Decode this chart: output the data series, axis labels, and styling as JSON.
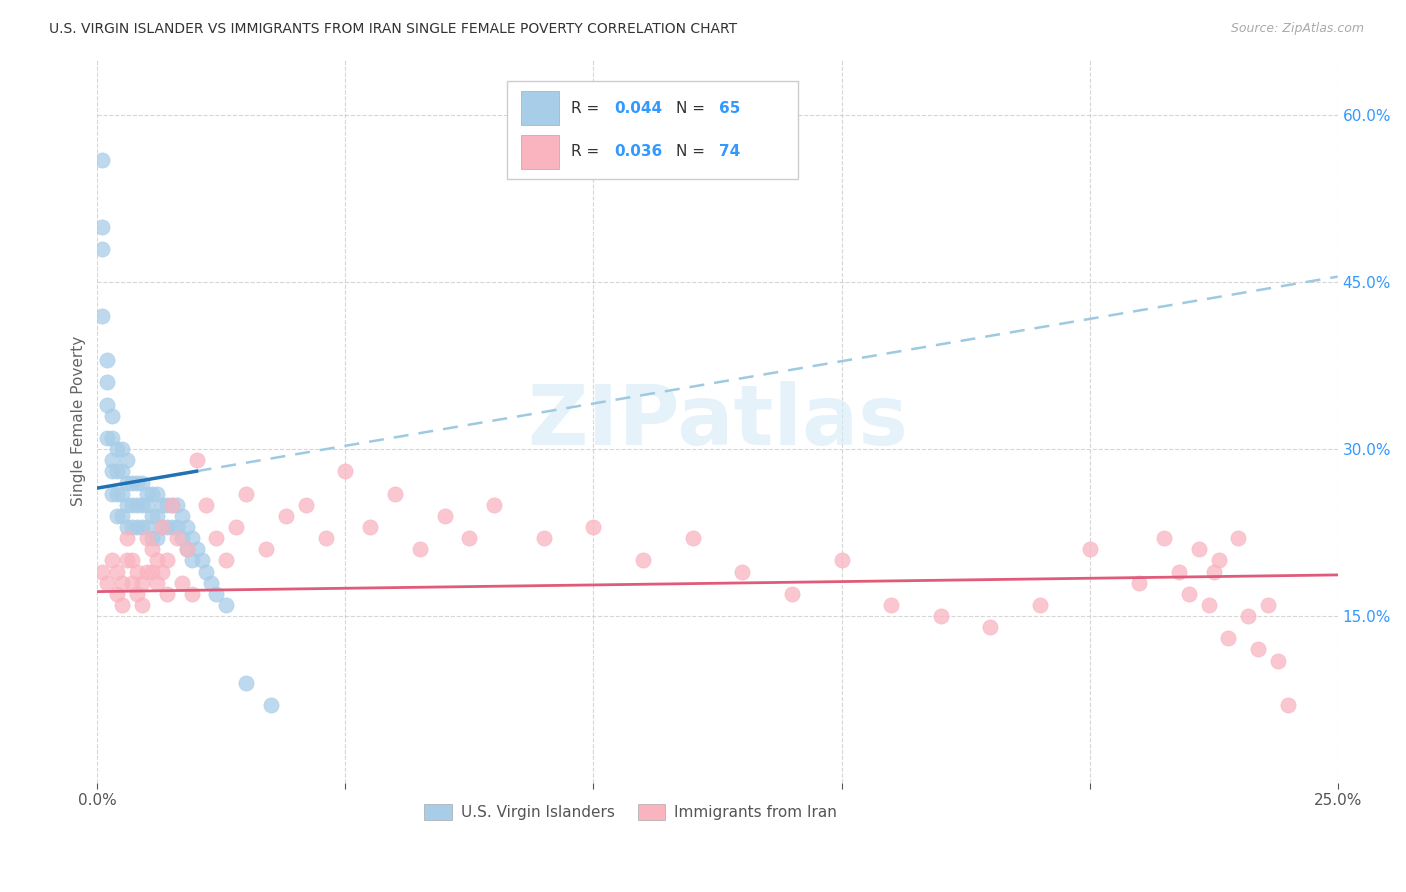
{
  "title": "U.S. VIRGIN ISLANDER VS IMMIGRANTS FROM IRAN SINGLE FEMALE POVERTY CORRELATION CHART",
  "source": "Source: ZipAtlas.com",
  "ylabel": "Single Female Poverty",
  "x_min": 0.0,
  "x_max": 0.25,
  "y_min": 0.0,
  "y_max": 0.65,
  "x_tick_positions": [
    0.0,
    0.05,
    0.1,
    0.15,
    0.2,
    0.25
  ],
  "x_tick_labels": [
    "0.0%",
    "",
    "",
    "",
    "",
    "25.0%"
  ],
  "y_tick_positions": [
    0.15,
    0.3,
    0.45,
    0.6
  ],
  "y_tick_labels": [
    "15.0%",
    "30.0%",
    "45.0%",
    "60.0%"
  ],
  "legend_bottom1": "U.S. Virgin Islanders",
  "legend_bottom2": "Immigrants from Iran",
  "blue_color": "#a8cde8",
  "pink_color": "#f9b4c0",
  "blue_line_solid_color": "#2171b5",
  "blue_line_dash_color": "#9ecae1",
  "pink_line_color": "#e05b7a",
  "R_blue": "0.044",
  "N_blue": "65",
  "R_pink": "0.036",
  "N_pink": "74",
  "blue_line_intercept": 0.265,
  "blue_line_slope": 0.76,
  "blue_line_solid_end": 0.02,
  "pink_line_intercept": 0.172,
  "pink_line_slope": 0.06,
  "blue_scatter_x": [
    0.001,
    0.001,
    0.001,
    0.001,
    0.002,
    0.002,
    0.002,
    0.002,
    0.003,
    0.003,
    0.003,
    0.003,
    0.003,
    0.004,
    0.004,
    0.004,
    0.004,
    0.005,
    0.005,
    0.005,
    0.005,
    0.006,
    0.006,
    0.006,
    0.006,
    0.007,
    0.007,
    0.007,
    0.008,
    0.008,
    0.008,
    0.009,
    0.009,
    0.009,
    0.01,
    0.01,
    0.01,
    0.011,
    0.011,
    0.011,
    0.012,
    0.012,
    0.012,
    0.013,
    0.013,
    0.014,
    0.014,
    0.015,
    0.015,
    0.016,
    0.016,
    0.017,
    0.017,
    0.018,
    0.018,
    0.019,
    0.019,
    0.02,
    0.021,
    0.022,
    0.023,
    0.024,
    0.026,
    0.03,
    0.035
  ],
  "blue_scatter_y": [
    0.56,
    0.5,
    0.48,
    0.42,
    0.38,
    0.36,
    0.34,
    0.31,
    0.33,
    0.31,
    0.29,
    0.28,
    0.26,
    0.3,
    0.28,
    0.26,
    0.24,
    0.3,
    0.28,
    0.26,
    0.24,
    0.29,
    0.27,
    0.25,
    0.23,
    0.27,
    0.25,
    0.23,
    0.27,
    0.25,
    0.23,
    0.27,
    0.25,
    0.23,
    0.26,
    0.25,
    0.23,
    0.26,
    0.24,
    0.22,
    0.26,
    0.24,
    0.22,
    0.25,
    0.23,
    0.25,
    0.23,
    0.25,
    0.23,
    0.25,
    0.23,
    0.24,
    0.22,
    0.23,
    0.21,
    0.22,
    0.2,
    0.21,
    0.2,
    0.19,
    0.18,
    0.17,
    0.16,
    0.09,
    0.07
  ],
  "pink_scatter_x": [
    0.001,
    0.002,
    0.003,
    0.004,
    0.004,
    0.005,
    0.005,
    0.006,
    0.006,
    0.007,
    0.007,
    0.008,
    0.008,
    0.009,
    0.009,
    0.01,
    0.01,
    0.011,
    0.011,
    0.012,
    0.012,
    0.013,
    0.013,
    0.014,
    0.014,
    0.015,
    0.016,
    0.017,
    0.018,
    0.019,
    0.02,
    0.022,
    0.024,
    0.026,
    0.028,
    0.03,
    0.034,
    0.038,
    0.042,
    0.046,
    0.05,
    0.055,
    0.06,
    0.065,
    0.07,
    0.075,
    0.08,
    0.09,
    0.1,
    0.11,
    0.12,
    0.13,
    0.14,
    0.15,
    0.16,
    0.17,
    0.18,
    0.19,
    0.2,
    0.21,
    0.215,
    0.218,
    0.22,
    0.222,
    0.224,
    0.225,
    0.226,
    0.228,
    0.23,
    0.232,
    0.234,
    0.236,
    0.238,
    0.24
  ],
  "pink_scatter_y": [
    0.19,
    0.18,
    0.2,
    0.17,
    0.19,
    0.16,
    0.18,
    0.2,
    0.22,
    0.18,
    0.2,
    0.17,
    0.19,
    0.16,
    0.18,
    0.19,
    0.22,
    0.19,
    0.21,
    0.18,
    0.2,
    0.19,
    0.23,
    0.17,
    0.2,
    0.25,
    0.22,
    0.18,
    0.21,
    0.17,
    0.29,
    0.25,
    0.22,
    0.2,
    0.23,
    0.26,
    0.21,
    0.24,
    0.25,
    0.22,
    0.28,
    0.23,
    0.26,
    0.21,
    0.24,
    0.22,
    0.25,
    0.22,
    0.23,
    0.2,
    0.22,
    0.19,
    0.17,
    0.2,
    0.16,
    0.15,
    0.14,
    0.16,
    0.21,
    0.18,
    0.22,
    0.19,
    0.17,
    0.21,
    0.16,
    0.19,
    0.2,
    0.13,
    0.22,
    0.15,
    0.12,
    0.16,
    0.11,
    0.07
  ]
}
